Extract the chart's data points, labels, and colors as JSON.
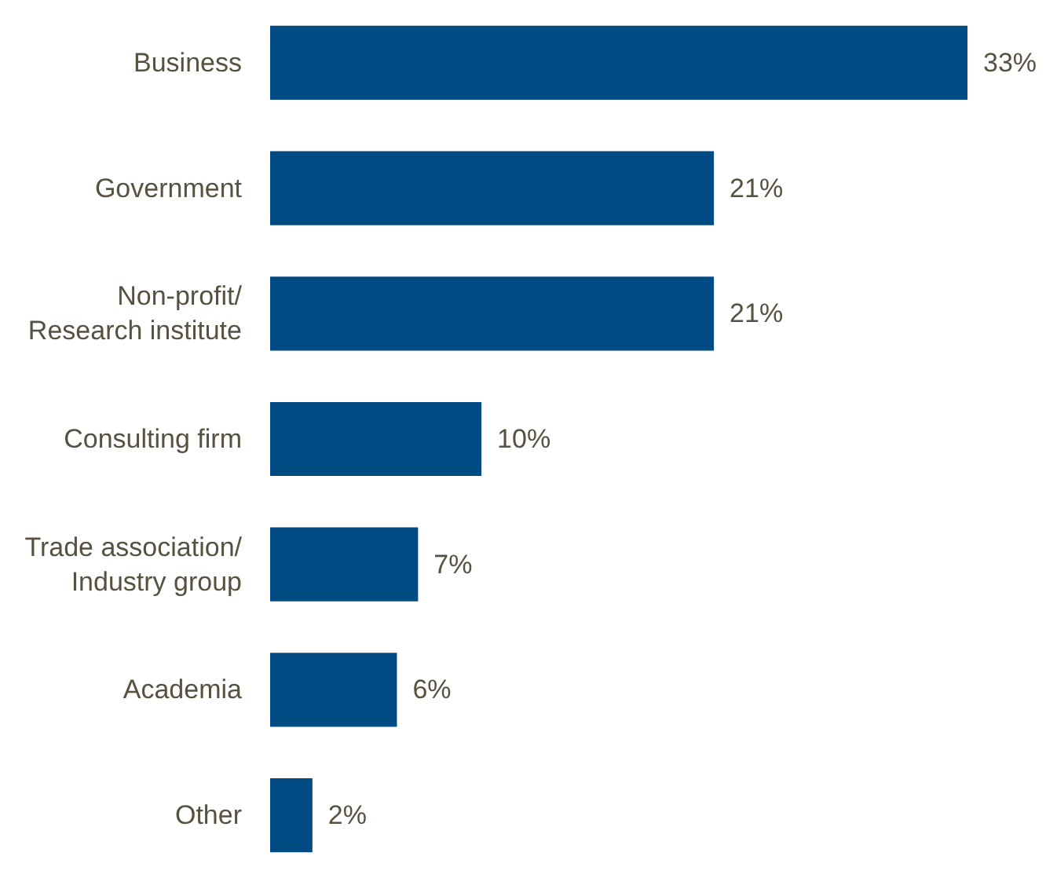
{
  "chart_data": {
    "type": "bar",
    "orientation": "horizontal",
    "categories": [
      "Business",
      "Government",
      "Non-profit/ Research institute",
      "Consulting firm",
      "Trade association/ Industry group",
      "Academia",
      "Other"
    ],
    "values": [
      33,
      21,
      21,
      10,
      7,
      6,
      2
    ],
    "value_labels": [
      "33%",
      "21%",
      "21%",
      "10%",
      "7%",
      "6%",
      "2%"
    ],
    "color": "#004b84"
  }
}
